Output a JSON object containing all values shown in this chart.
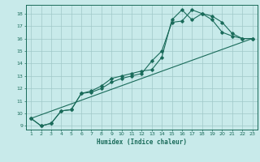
{
  "background_color": "#c8eaea",
  "grid_color": "#a0c8c8",
  "line_color": "#1a6b5a",
  "marker_color": "#1a6b5a",
  "xlabel": "Humidex (Indice chaleur)",
  "xlim": [
    0.5,
    23.5
  ],
  "ylim": [
    8.7,
    18.7
  ],
  "yticks": [
    9,
    10,
    11,
    12,
    13,
    14,
    15,
    16,
    17,
    18
  ],
  "xticks": [
    1,
    2,
    3,
    4,
    5,
    6,
    7,
    8,
    9,
    10,
    11,
    12,
    13,
    14,
    15,
    16,
    17,
    18,
    19,
    20,
    21,
    22,
    23
  ],
  "line1_x": [
    1,
    2,
    3,
    4,
    5,
    6,
    7,
    8,
    9,
    10,
    11,
    12,
    13,
    14,
    15,
    16,
    17,
    18,
    19,
    20,
    21,
    22,
    23
  ],
  "line1_y": [
    9.6,
    9.0,
    9.2,
    10.2,
    10.3,
    11.6,
    11.7,
    12.0,
    12.5,
    12.8,
    13.0,
    13.2,
    14.2,
    15.0,
    17.3,
    17.4,
    18.3,
    18.0,
    17.8,
    17.3,
    16.4,
    16.0,
    16.0
  ],
  "line2_x": [
    1,
    2,
    3,
    4,
    5,
    6,
    7,
    8,
    9,
    10,
    11,
    12,
    13,
    14,
    15,
    16,
    17,
    18,
    19,
    20,
    21,
    22,
    23
  ],
  "line2_y": [
    9.6,
    9.0,
    9.2,
    10.2,
    10.3,
    11.6,
    11.8,
    12.2,
    12.8,
    13.0,
    13.2,
    13.4,
    13.5,
    14.5,
    17.5,
    18.3,
    17.5,
    18.0,
    17.5,
    16.5,
    16.2,
    16.0,
    16.0
  ],
  "line3_x": [
    1,
    23
  ],
  "line3_y": [
    9.6,
    16.0
  ]
}
